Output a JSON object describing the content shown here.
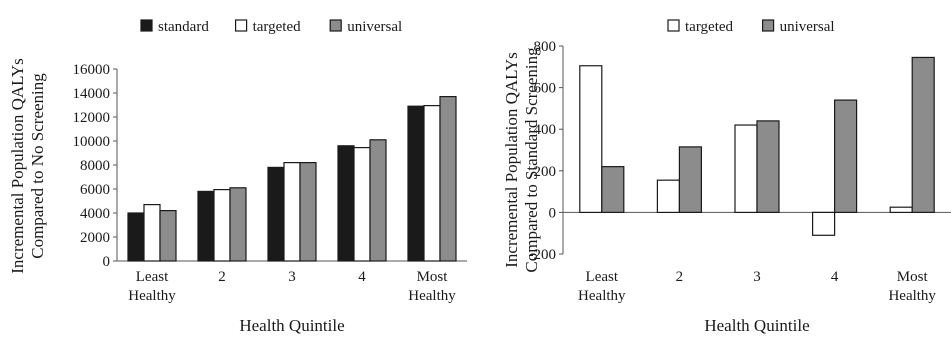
{
  "chart_data": [
    {
      "type": "bar",
      "title": "",
      "xlabel": "Health Quintile",
      "ylabel_line1": "Incremental Population QALYs",
      "ylabel_line2": "Compared to No Screening",
      "categories": [
        [
          "Least",
          "Healthy"
        ],
        [
          "2"
        ],
        [
          "3"
        ],
        [
          "4"
        ],
        [
          "Most",
          "Healthy"
        ]
      ],
      "series": [
        {
          "name": "standard",
          "color": "#1a1a1a",
          "values": [
            4000,
            5800,
            7800,
            9600,
            12900
          ]
        },
        {
          "name": "targeted",
          "color": "#ffffff",
          "values": [
            4700,
            5950,
            8200,
            9450,
            12950
          ]
        },
        {
          "name": "universal",
          "color": "#8c8c8c",
          "values": [
            4200,
            6100,
            8200,
            10100,
            13700
          ]
        }
      ],
      "ylim": [
        0,
        16000
      ],
      "yticks": [
        0,
        2000,
        4000,
        6000,
        8000,
        10000,
        12000,
        14000,
        16000
      ],
      "grid": false,
      "legend": "top"
    },
    {
      "type": "bar",
      "title": "",
      "xlabel": "Health Quintile",
      "ylabel_line1": "Incremental Population QALYs",
      "ylabel_line2": "Compared to Standard Screening",
      "categories": [
        [
          "Least",
          "Healthy"
        ],
        [
          "2"
        ],
        [
          "3"
        ],
        [
          "4"
        ],
        [
          "Most",
          "Healthy"
        ]
      ],
      "series": [
        {
          "name": "targeted",
          "color": "#ffffff",
          "values": [
            705,
            155,
            420,
            -110,
            25
          ]
        },
        {
          "name": "universal",
          "color": "#8c8c8c",
          "values": [
            220,
            315,
            440,
            540,
            745
          ]
        }
      ],
      "ylim": [
        -200,
        800
      ],
      "yticks": [
        -200,
        0,
        200,
        400,
        600,
        800
      ],
      "grid": false,
      "legend": "top"
    }
  ]
}
